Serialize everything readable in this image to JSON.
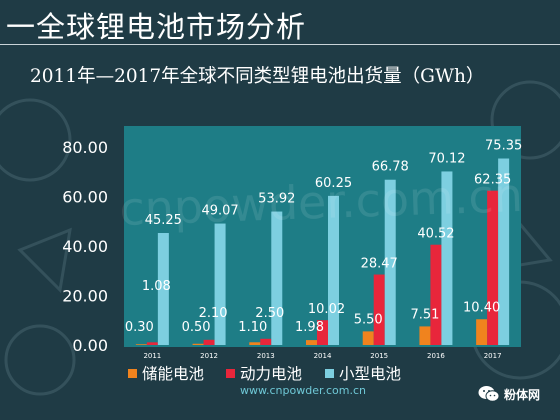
{
  "page": {
    "title": "一全球锂电池市场分析",
    "footer": "www.cnpowder.com.cn",
    "watermark": "cnpowder.com.cn",
    "logo": {
      "text": "粉体网",
      "icon": "wechat-icon"
    }
  },
  "colors": {
    "background": "#1f3b45",
    "plot_background": "#1e7d86",
    "storage": "#f0831e",
    "power": "#e8263b",
    "small": "#7dcfe0"
  },
  "chart_data": {
    "type": "bar",
    "title": "2011年—2017年全球不同类型锂电池出货量（GWh）",
    "categories": [
      "2011",
      "2012",
      "2013",
      "2014",
      "2015",
      "2016",
      "2017"
    ],
    "series": [
      {
        "name": "储能电池",
        "values": [
          0.3,
          0.5,
          1.1,
          1.98,
          5.5,
          7.51,
          10.4
        ],
        "labels": [
          "0.30",
          "0.50",
          "1.10",
          "1.98",
          "5.50",
          "7.51",
          "10.40"
        ]
      },
      {
        "name": "动力电池",
        "values": [
          1.08,
          2.1,
          2.5,
          10.02,
          28.47,
          40.52,
          62.35
        ],
        "labels": [
          "1.08",
          "2.10",
          "2.50",
          "10.02",
          "28.47",
          "40.52",
          "62.35"
        ]
      },
      {
        "name": "小型电池",
        "values": [
          45.25,
          49.07,
          53.92,
          60.25,
          66.78,
          70.12,
          75.35
        ],
        "labels": [
          "45.25",
          "49.07",
          "53.92",
          "60.25",
          "66.78",
          "70.12",
          "75.35"
        ]
      }
    ],
    "ylim": [
      0,
      80
    ],
    "yticks": [
      "0.00",
      "20.00",
      "40.00",
      "60.00",
      "80.00"
    ],
    "grid": false,
    "legend": "bottom"
  }
}
